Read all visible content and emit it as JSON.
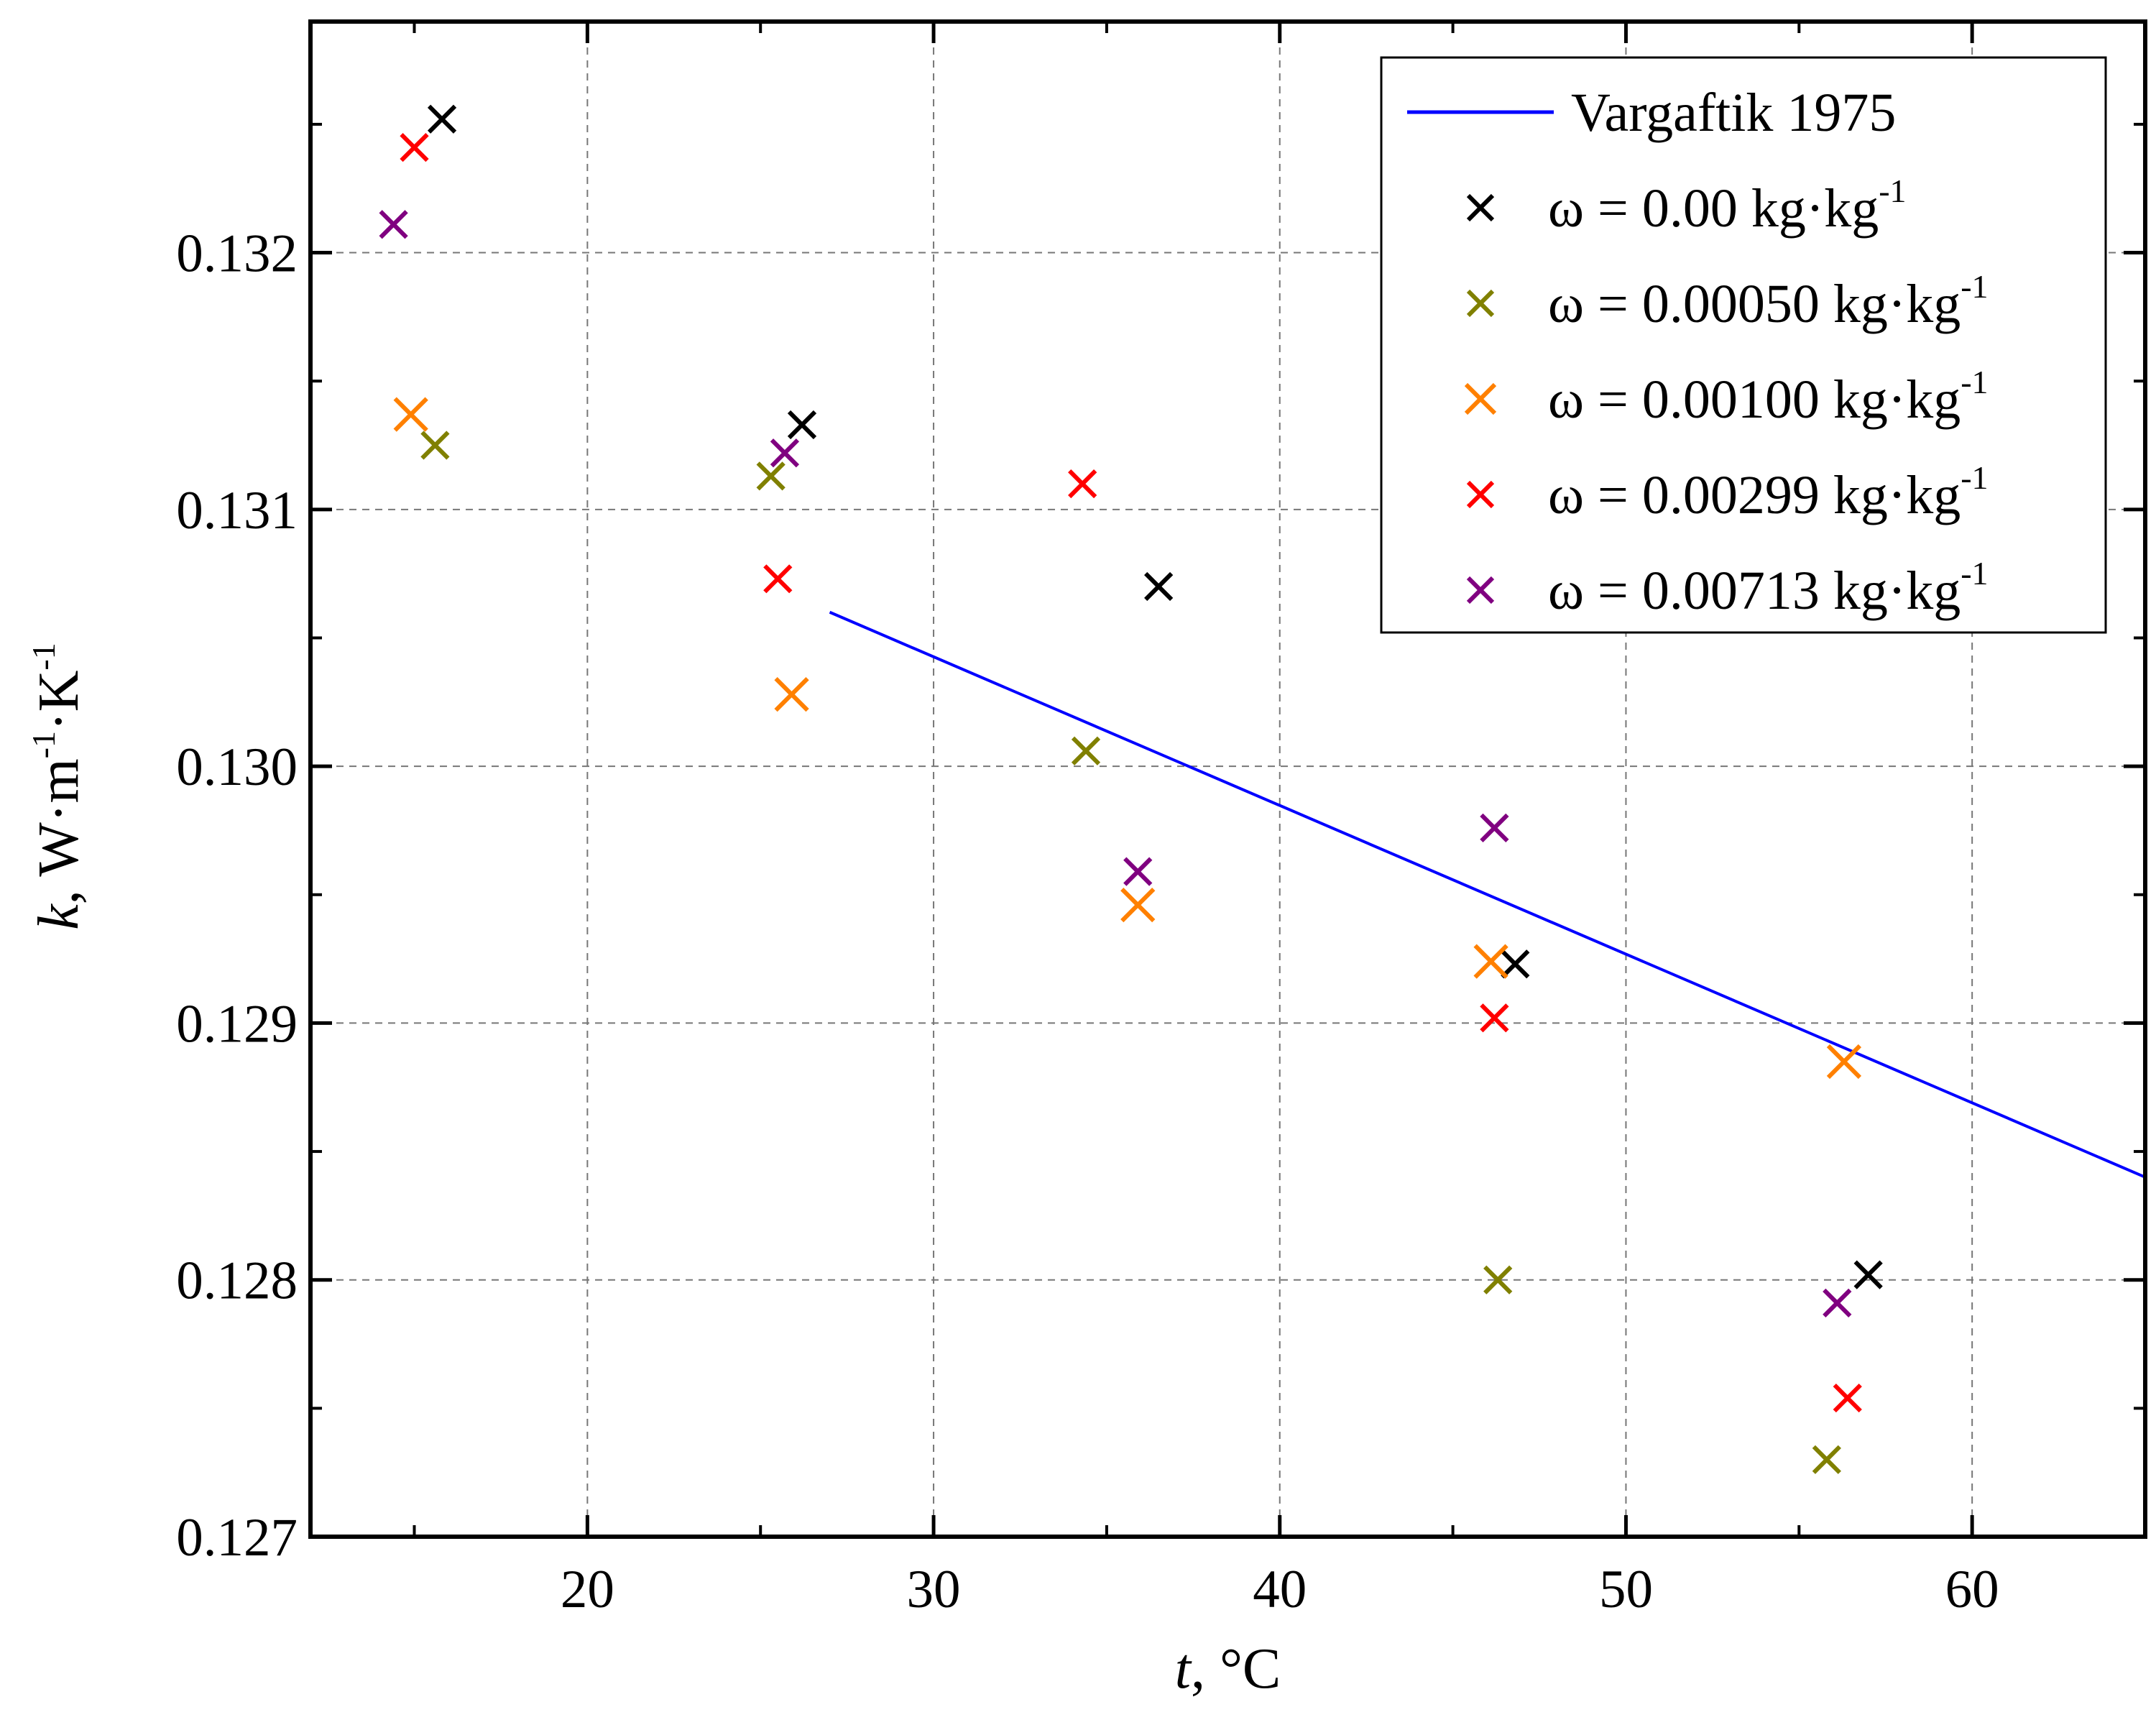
{
  "chart_data": {
    "type": "scatter",
    "xlabel": {
      "var": "t",
      "unit": ", °C"
    },
    "ylabel": {
      "var": "k",
      "unit": ", W·m",
      "sup1": "-1",
      "mid": "·K",
      "sup2": "-1"
    },
    "xlim": [
      12,
      65
    ],
    "ylim": [
      0.127,
      0.1329
    ],
    "xticks": [
      20,
      30,
      40,
      50,
      60
    ],
    "xtick_labels": [
      "20",
      "30",
      "40",
      "50",
      "60"
    ],
    "yticks": [
      0.127,
      0.128,
      0.129,
      0.13,
      0.131,
      0.132
    ],
    "ytick_labels": [
      "0.127",
      "0.128",
      "0.129",
      "0.130",
      "0.131",
      "0.132"
    ],
    "grid": true,
    "legend_position": "top-right",
    "line_series": {
      "name": "Vargaftik 1975",
      "color": "#0000ff",
      "x": [
        27,
        65
      ],
      "y": [
        0.1306,
        0.1284
      ]
    },
    "series": [
      {
        "name": "ω = 0.00 kg·kg",
        "label_main": "ω = 0.00 kg·kg",
        "label_sup": "-1",
        "color": "#000000",
        "marker": "x",
        "x": [
          15.8,
          26.2,
          36.5,
          46.8,
          57.0
        ],
        "y": [
          0.13252,
          0.13133,
          0.1307,
          0.12923,
          0.12802
        ]
      },
      {
        "name": "ω = 0.00050 kg·kg",
        "label_main": "ω = 0.00050 kg·kg",
        "label_sup": "-1",
        "color": "#808000",
        "marker": "x",
        "x": [
          15.6,
          25.3,
          34.4,
          46.3,
          55.8
        ],
        "y": [
          0.13125,
          0.13113,
          0.13006,
          0.128,
          0.1273
        ]
      },
      {
        "name": "ω = 0.00100 kg·kg",
        "label_main": "ω = 0.00100 kg·kg",
        "label_sup": "-1",
        "color": "#ff8000",
        "marker": "x",
        "x": [
          14.9,
          25.9,
          35.9,
          46.1,
          56.3
        ],
        "y": [
          0.13137,
          0.13028,
          0.12946,
          0.12924,
          0.12885
        ]
      },
      {
        "name": "ω = 0.00299 kg·kg",
        "label_main": "ω = 0.00299 kg·kg",
        "label_sup": "-1",
        "color": "#ff0000",
        "marker": "x",
        "x": [
          15.0,
          25.5,
          34.3,
          46.2,
          56.4
        ],
        "y": [
          0.13241,
          0.13073,
          0.1311,
          0.12902,
          0.12754
        ]
      },
      {
        "name": "ω = 0.00713 kg·kg",
        "label_main": "ω = 0.00713 kg·kg",
        "label_sup": "-1",
        "color": "#800080",
        "marker": "x",
        "x": [
          14.4,
          25.7,
          35.9,
          46.2,
          56.1
        ],
        "y": [
          0.13211,
          0.13122,
          0.12959,
          0.12976,
          0.12791
        ]
      }
    ]
  }
}
